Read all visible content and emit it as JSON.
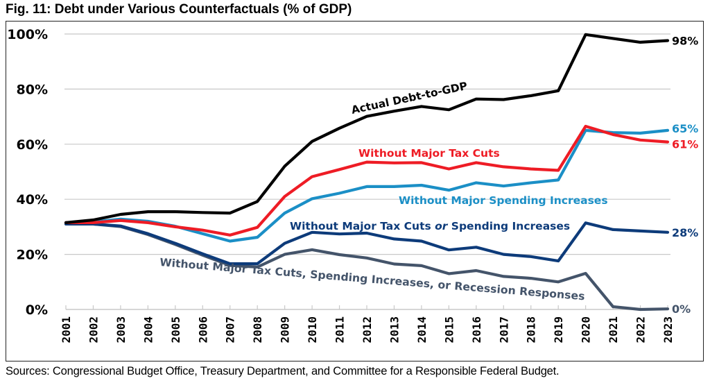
{
  "title": "Fig. 11: Debt under Various Counterfactuals (% of GDP)",
  "sources": "Sources: Congressional Budget Office, Treasury Department, and Committee for a Responsible Federal Budget.",
  "chart_data": {
    "type": "line",
    "title": "Fig. 11: Debt under Various Counterfactuals (% of GDP)",
    "xlabel": "",
    "ylabel": "",
    "ylim": [
      0,
      100
    ],
    "yticks": [
      0,
      20,
      40,
      60,
      80,
      100
    ],
    "ytick_labels": [
      "0%",
      "20%",
      "40%",
      "60%",
      "80%",
      "100%"
    ],
    "grid": true,
    "legend": "inline labels",
    "x": [
      "2001",
      "2002",
      "2003",
      "2004",
      "2005",
      "2006",
      "2007",
      "2008",
      "2009",
      "2010",
      "2011",
      "2012",
      "2013",
      "2014",
      "2015",
      "2016",
      "2017",
      "2018",
      "2019",
      "2020",
      "2021",
      "2022",
      "2023"
    ],
    "series": [
      {
        "name": "Actual Debt-to-GDP",
        "color": "#000000",
        "end_label": "98%",
        "values": [
          31.5,
          32.5,
          34.5,
          35.5,
          35.5,
          35.2,
          35.0,
          39.2,
          52.0,
          61.0,
          65.8,
          70.1,
          72.0,
          73.7,
          72.5,
          76.4,
          76.2,
          77.6,
          79.4,
          99.8,
          98.4,
          97.0,
          97.6
        ]
      },
      {
        "name": "Without Major Tax Cuts",
        "color": "#ee1c25",
        "end_label": "61%",
        "values": [
          31.5,
          31.5,
          32.3,
          31.5,
          30.0,
          28.8,
          27.0,
          29.8,
          41.0,
          48.2,
          50.8,
          53.5,
          53.2,
          53.3,
          51.0,
          53.3,
          51.8,
          51.0,
          50.5,
          66.5,
          63.5,
          61.5,
          60.8
        ]
      },
      {
        "name": "Without Major Spending Increases",
        "color": "#1b8fc6",
        "end_label": "65%",
        "values": [
          31.5,
          31.8,
          32.8,
          32.0,
          30.2,
          27.5,
          24.8,
          26.2,
          35.0,
          40.2,
          42.2,
          44.6,
          44.6,
          45.1,
          43.3,
          46.0,
          44.8,
          46.0,
          47.0,
          65.0,
          64.2,
          64.0,
          65.0
        ]
      },
      {
        "name": "Without Major Tax Cuts or Spending Increases",
        "name_parts": [
          "Without Major Tax Cuts ",
          "or",
          " Spending Increases"
        ],
        "color": "#0d3b7a",
        "end_label": "28%",
        "values": [
          31.0,
          31.0,
          30.3,
          27.5,
          24.0,
          20.2,
          16.6,
          16.6,
          24.0,
          28.0,
          27.4,
          27.7,
          25.6,
          24.8,
          21.6,
          22.6,
          20.0,
          19.2,
          17.6,
          31.4,
          29.0,
          28.5,
          28.0
        ]
      },
      {
        "name": "Without Major Tax Cuts, Spending Increases, or Recession Responses",
        "color": "#44546a",
        "end_label": "0%",
        "values": [
          31.0,
          31.0,
          30.1,
          27.2,
          23.6,
          19.7,
          16.0,
          15.4,
          20.0,
          21.7,
          19.9,
          18.7,
          16.5,
          15.9,
          13.0,
          14.1,
          12.0,
          11.3,
          10.0,
          13.1,
          1.0,
          0.0,
          0.2
        ]
      }
    ]
  }
}
